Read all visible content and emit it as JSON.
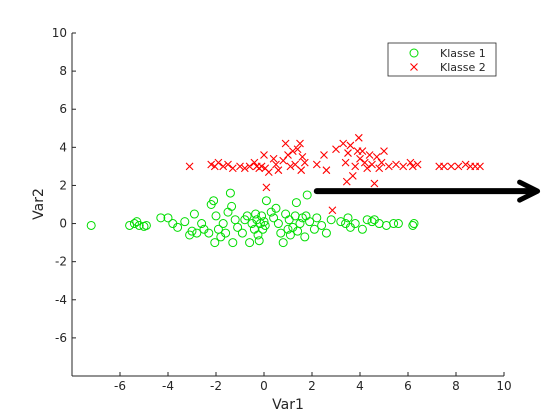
{
  "chart_data": {
    "type": "scatter",
    "xlabel": "Var1",
    "ylabel": "Var2",
    "xlim": [
      -8,
      10
    ],
    "ylim": [
      -8,
      10
    ],
    "xticks": [
      -6,
      -4,
      -2,
      0,
      2,
      4,
      6,
      8,
      10
    ],
    "yticks": [
      -6,
      -4,
      -2,
      0,
      2,
      4,
      6,
      8,
      10
    ],
    "grid": false,
    "legend": {
      "placement": "top-right"
    },
    "series": [
      {
        "name": "Klasse 1",
        "marker": "circle",
        "color": "#00dd00",
        "points": [
          [
            -7.2,
            -0.1
          ],
          [
            -5.6,
            -0.1
          ],
          [
            -5.4,
            0.0
          ],
          [
            -5.3,
            0.1
          ],
          [
            -5.2,
            -0.1
          ],
          [
            -5.0,
            -0.15
          ],
          [
            -4.9,
            -0.1
          ],
          [
            -4.3,
            0.3
          ],
          [
            -4.0,
            0.3
          ],
          [
            -3.8,
            0.0
          ],
          [
            -3.6,
            -0.2
          ],
          [
            -3.3,
            0.1
          ],
          [
            -3.1,
            -0.6
          ],
          [
            -3.0,
            -0.4
          ],
          [
            -2.9,
            0.5
          ],
          [
            -2.8,
            -0.5
          ],
          [
            -2.6,
            0.0
          ],
          [
            -2.5,
            -0.3
          ],
          [
            -2.3,
            -0.5
          ],
          [
            -2.2,
            1.0
          ],
          [
            -2.1,
            1.2
          ],
          [
            -2.05,
            -1.0
          ],
          [
            -2.0,
            0.4
          ],
          [
            -1.9,
            -0.3
          ],
          [
            -1.8,
            -0.7
          ],
          [
            -1.7,
            0.0
          ],
          [
            -1.6,
            -0.5
          ],
          [
            -1.5,
            0.6
          ],
          [
            -1.4,
            1.6
          ],
          [
            -1.35,
            0.9
          ],
          [
            -1.3,
            -1.0
          ],
          [
            -1.2,
            0.2
          ],
          [
            -1.1,
            -0.2
          ],
          [
            -0.9,
            -0.5
          ],
          [
            -0.8,
            0.2
          ],
          [
            -0.7,
            0.4
          ],
          [
            -0.6,
            -1.0
          ],
          [
            -0.5,
            0.0
          ],
          [
            -0.4,
            -0.3
          ],
          [
            -0.35,
            0.5
          ],
          [
            -0.3,
            0.2
          ],
          [
            -0.25,
            -0.6
          ],
          [
            -0.2,
            -0.9
          ],
          [
            -0.15,
            0.0
          ],
          [
            -0.1,
            0.4
          ],
          [
            -0.05,
            -0.3
          ],
          [
            0.0,
            0.1
          ],
          [
            0.05,
            -0.1
          ],
          [
            0.1,
            1.2
          ],
          [
            0.3,
            0.6
          ],
          [
            0.4,
            0.3
          ],
          [
            0.5,
            0.8
          ],
          [
            0.6,
            0.0
          ],
          [
            0.7,
            -0.5
          ],
          [
            0.8,
            -1.0
          ],
          [
            0.9,
            0.5
          ],
          [
            1.0,
            -0.3
          ],
          [
            1.05,
            0.2
          ],
          [
            1.1,
            -0.6
          ],
          [
            1.2,
            -0.2
          ],
          [
            1.3,
            0.4
          ],
          [
            1.35,
            1.1
          ],
          [
            1.4,
            -0.4
          ],
          [
            1.5,
            0.0
          ],
          [
            1.6,
            0.3
          ],
          [
            1.7,
            -0.7
          ],
          [
            1.75,
            0.4
          ],
          [
            1.8,
            1.5
          ],
          [
            1.9,
            0.1
          ],
          [
            2.1,
            -0.3
          ],
          [
            2.2,
            0.3
          ],
          [
            2.4,
            -0.1
          ],
          [
            2.6,
            -0.5
          ],
          [
            2.8,
            0.2
          ],
          [
            3.2,
            0.1
          ],
          [
            3.4,
            0.0
          ],
          [
            3.5,
            0.3
          ],
          [
            3.6,
            -0.2
          ],
          [
            3.8,
            0.0
          ],
          [
            4.1,
            -0.3
          ],
          [
            4.3,
            0.2
          ],
          [
            4.5,
            0.1
          ],
          [
            4.6,
            0.2
          ],
          [
            4.8,
            0.0
          ],
          [
            5.1,
            -0.1
          ],
          [
            5.4,
            0.0
          ],
          [
            5.6,
            0.0
          ],
          [
            6.2,
            -0.1
          ],
          [
            6.25,
            0.0
          ]
        ]
      },
      {
        "name": "Klasse 2",
        "marker": "x",
        "color": "#ff0000",
        "points": [
          [
            -3.1,
            3.0
          ],
          [
            -2.2,
            3.1
          ],
          [
            -2.05,
            3.0
          ],
          [
            -1.9,
            3.2
          ],
          [
            -1.7,
            3.0
          ],
          [
            -1.5,
            3.1
          ],
          [
            -1.3,
            2.9
          ],
          [
            -1.0,
            3.0
          ],
          [
            -0.8,
            2.9
          ],
          [
            -0.6,
            3.0
          ],
          [
            -0.4,
            3.2
          ],
          [
            -0.3,
            3.0
          ],
          [
            -0.2,
            2.9
          ],
          [
            -0.1,
            3.0
          ],
          [
            0.0,
            3.6
          ],
          [
            0.05,
            2.9
          ],
          [
            0.1,
            1.9
          ],
          [
            0.2,
            2.7
          ],
          [
            0.4,
            3.4
          ],
          [
            0.5,
            3.1
          ],
          [
            0.6,
            2.8
          ],
          [
            0.8,
            3.3
          ],
          [
            0.9,
            4.2
          ],
          [
            1.0,
            3.6
          ],
          [
            1.1,
            3.0
          ],
          [
            1.2,
            3.8
          ],
          [
            1.3,
            3.1
          ],
          [
            1.4,
            3.9
          ],
          [
            1.5,
            4.2
          ],
          [
            1.55,
            2.8
          ],
          [
            1.6,
            3.5
          ],
          [
            1.7,
            3.2
          ],
          [
            2.2,
            3.1
          ],
          [
            2.5,
            3.6
          ],
          [
            2.6,
            2.8
          ],
          [
            2.85,
            0.7
          ],
          [
            3.0,
            3.9
          ],
          [
            3.3,
            4.2
          ],
          [
            3.4,
            3.2
          ],
          [
            3.45,
            2.2
          ],
          [
            3.5,
            3.7
          ],
          [
            3.6,
            4.1
          ],
          [
            3.7,
            2.5
          ],
          [
            3.8,
            3.0
          ],
          [
            3.9,
            3.8
          ],
          [
            3.95,
            4.5
          ],
          [
            4.0,
            3.4
          ],
          [
            4.1,
            3.8
          ],
          [
            4.2,
            3.2
          ],
          [
            4.3,
            2.9
          ],
          [
            4.4,
            3.6
          ],
          [
            4.5,
            3.1
          ],
          [
            4.6,
            2.1
          ],
          [
            4.7,
            3.5
          ],
          [
            4.8,
            2.9
          ],
          [
            4.9,
            3.2
          ],
          [
            5.0,
            3.8
          ],
          [
            5.2,
            3.0
          ],
          [
            5.5,
            3.1
          ],
          [
            5.8,
            3.0
          ],
          [
            6.1,
            3.2
          ],
          [
            6.2,
            3.0
          ],
          [
            6.4,
            3.1
          ],
          [
            7.3,
            3.0
          ],
          [
            7.5,
            3.0
          ],
          [
            7.8,
            3.0
          ],
          [
            8.1,
            3.0
          ],
          [
            8.4,
            3.1
          ],
          [
            8.6,
            3.0
          ],
          [
            8.8,
            3.0
          ],
          [
            9.0,
            3.0
          ]
        ]
      }
    ],
    "annotations": [
      {
        "type": "arrow",
        "color": "#000000",
        "from": [
          2.2,
          1.7
        ],
        "to": [
          11.4,
          1.7
        ]
      }
    ]
  }
}
